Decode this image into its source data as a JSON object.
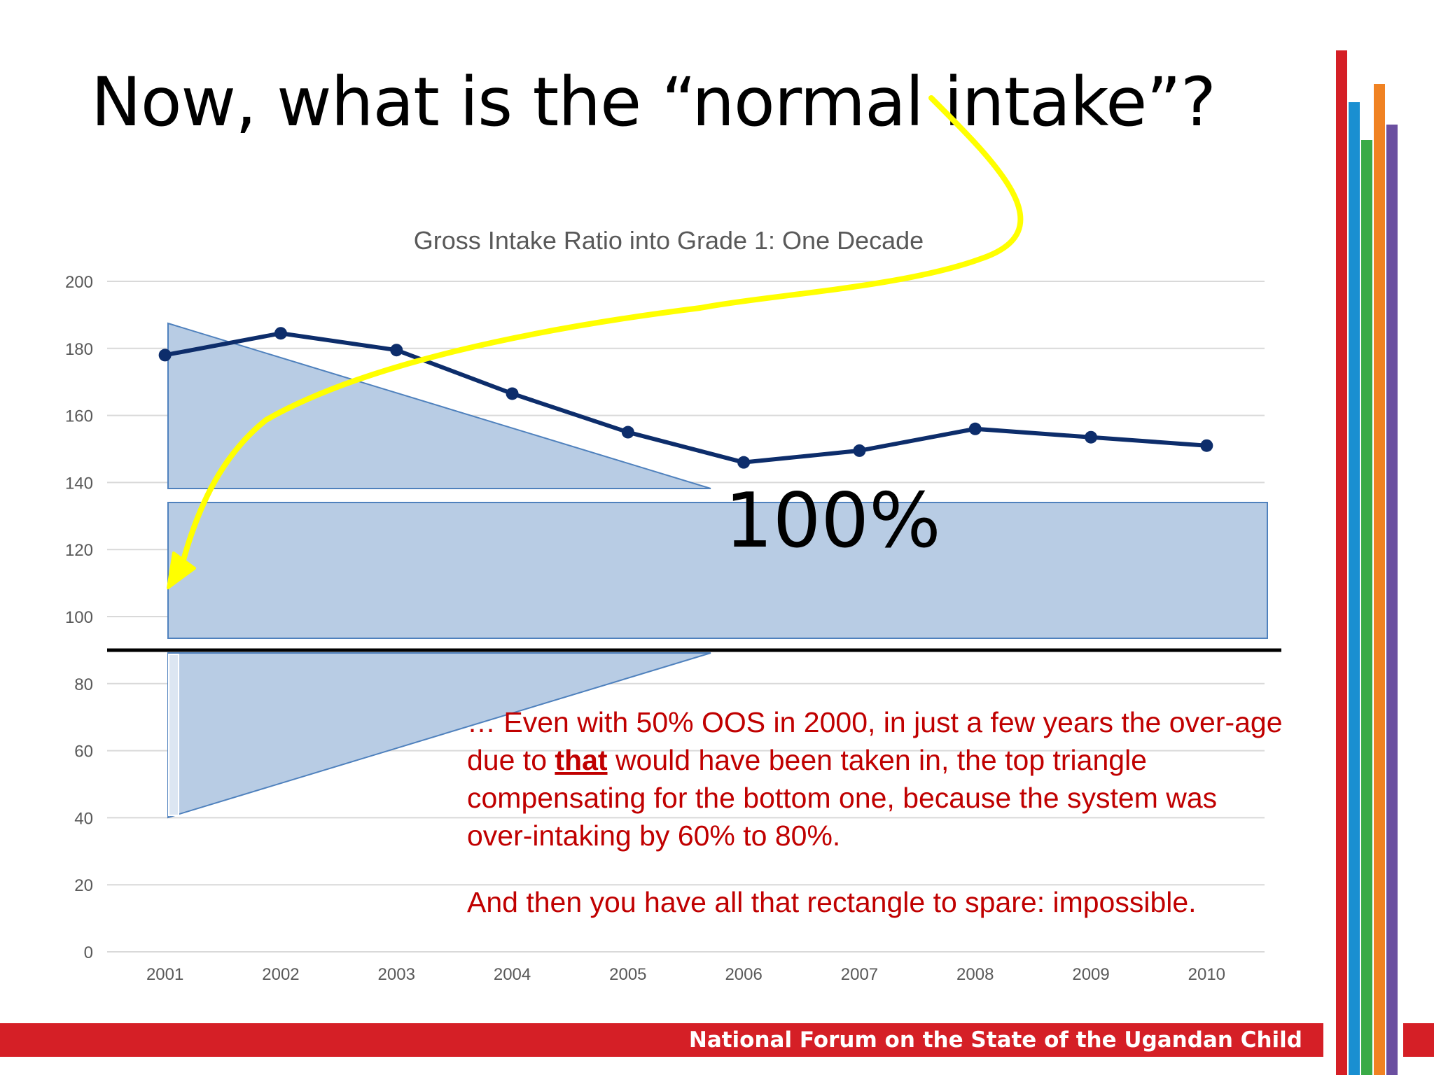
{
  "slide": {
    "title": "Now, what is the “normal intake”?",
    "footer": "National Forum on the State of the Ugandan Child",
    "overlay_label": "100%",
    "note": {
      "line_before": "… Even with 50% OOS in 2000, in just a few years the over-age due to ",
      "emphasis": "that",
      "line_after": " would have been taken in, the top triangle compensating for the bottom one, because the system was over-intaking by 60% to 80%.",
      "second": "And then you have all that rectangle to spare: impossible."
    },
    "colors": {
      "footer_red": "#d51f26",
      "accent_bars": [
        "#d51f26",
        "#1a8fd1",
        "#3aab47",
        "#f08222",
        "#6b4fa0"
      ],
      "line": "#0d2d6b",
      "shape_fill": "#b8cce4",
      "shape_stroke": "#4f81bd",
      "arrow": "#ffff00",
      "note_text": "#c00000"
    }
  },
  "chart_data": {
    "type": "line",
    "title": "Gross Intake Ratio into Grade 1: One Decade",
    "xlabel": "",
    "ylabel": "",
    "categories": [
      "2001",
      "2002",
      "2003",
      "2004",
      "2005",
      "2006",
      "2007",
      "2008",
      "2009",
      "2010"
    ],
    "series": [
      {
        "values": [
          178,
          184.5,
          179.5,
          166.5,
          155,
          146,
          149.5,
          156,
          153.5,
          151
        ]
      }
    ],
    "ylim": [
      0,
      200
    ],
    "yticks": [
      0,
      20,
      40,
      60,
      80,
      100,
      120,
      140,
      160,
      180,
      200
    ],
    "grid": true,
    "legend": "none"
  }
}
